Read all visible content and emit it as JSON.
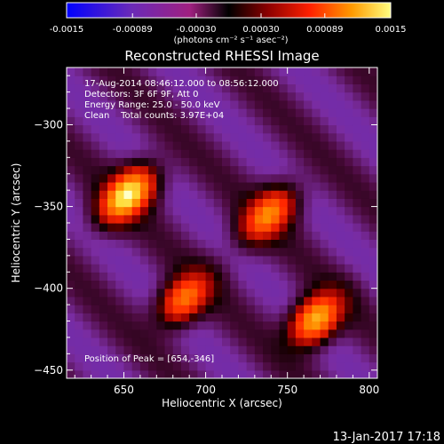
{
  "colorbar": {
    "ticks": [
      "-0.0015",
      "-0.00089",
      "-0.00030",
      "0.00030",
      "0.00089",
      "0.0015"
    ],
    "tick_values": [
      -0.0015,
      -0.00089,
      -0.0003,
      0.0003,
      0.00089,
      0.0015
    ],
    "range": [
      -0.0015,
      0.0015
    ],
    "unit_label": "(photons cm⁻² s⁻¹ asec⁻²)",
    "colormap": [
      "#0000ff",
      "#6a2ab8",
      "#a02080",
      "#000000",
      "#8b0000",
      "#ff2000",
      "#ff9a00",
      "#ffff80"
    ]
  },
  "chart_data": {
    "type": "heatmap",
    "title": "Reconstructed RHESSI Image",
    "xlabel": "Heliocentric X (arcsec)",
    "ylabel": "Heliocentric Y (arcsec)",
    "xlim": [
      615,
      805
    ],
    "ylim": [
      -455,
      -265
    ],
    "xticks": [
      650,
      700,
      750,
      800
    ],
    "yticks": [
      -450,
      -400,
      -350,
      -300
    ],
    "xtick_labels": [
      "650",
      "700",
      "750",
      "800"
    ],
    "ytick_labels": [
      "−450",
      "−400",
      "−350",
      "−300"
    ],
    "annotation_lines": [
      "17-Aug-2014 08:46:12.000 to 08:56:12.000",
      "Detectors: 3F 6F 9F, Att 0",
      "Energy Range: 25.0 - 50.0 keV",
      "Clean    Total counts: 3.97E+04"
    ],
    "peak_label": "Position of Peak = [654,-346]",
    "peak_position": [
      654,
      -346
    ],
    "sources": [
      {
        "x": 652,
        "y": -343,
        "amplitude": 0.0015
      },
      {
        "x": 738,
        "y": -355,
        "amplitude": 0.0011
      },
      {
        "x": 688,
        "y": -405,
        "amplitude": 0.001
      },
      {
        "x": 768,
        "y": -418,
        "amplitude": 0.0012
      }
    ]
  },
  "footer": {
    "date": "13-Jan-2017 17:18"
  }
}
